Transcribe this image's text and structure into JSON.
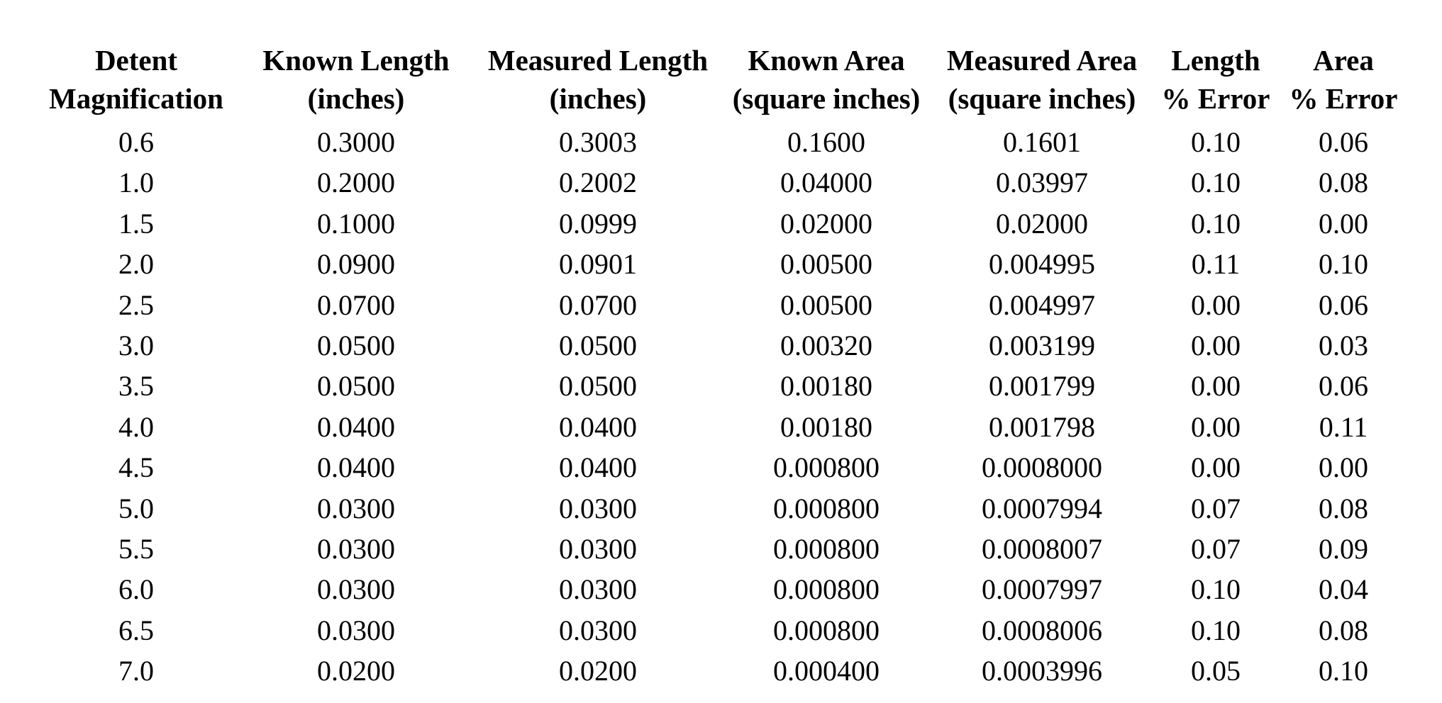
{
  "table": {
    "columns": [
      {
        "line1": "Detent",
        "line2": "Magnification"
      },
      {
        "line1": "Known Length",
        "line2": "(inches)"
      },
      {
        "line1": "Measured Length",
        "line2": "(inches)"
      },
      {
        "line1": "Known Area",
        "line2": "(square inches)"
      },
      {
        "line1": "Measured Area",
        "line2": "(square inches)"
      },
      {
        "line1": "Length",
        "line2": "% Error"
      },
      {
        "line1": "Area",
        "line2": "% Error"
      }
    ],
    "rows": [
      [
        "0.6",
        "0.3000",
        "0.3003",
        "0.1600",
        "0.1601",
        "0.10",
        "0.06"
      ],
      [
        "1.0",
        "0.2000",
        "0.2002",
        "0.04000",
        "0.03997",
        "0.10",
        "0.08"
      ],
      [
        "1.5",
        "0.1000",
        "0.0999",
        "0.02000",
        "0.02000",
        "0.10",
        "0.00"
      ],
      [
        "2.0",
        "0.0900",
        "0.0901",
        "0.00500",
        "0.004995",
        "0.11",
        "0.10"
      ],
      [
        "2.5",
        "0.0700",
        "0.0700",
        "0.00500",
        "0.004997",
        "0.00",
        "0.06"
      ],
      [
        "3.0",
        "0.0500",
        "0.0500",
        "0.00320",
        "0.003199",
        "0.00",
        "0.03"
      ],
      [
        "3.5",
        "0.0500",
        "0.0500",
        "0.00180",
        "0.001799",
        "0.00",
        "0.06"
      ],
      [
        "4.0",
        "0.0400",
        "0.0400",
        "0.00180",
        "0.001798",
        "0.00",
        "0.11"
      ],
      [
        "4.5",
        "0.0400",
        "0.0400",
        "0.000800",
        "0.0008000",
        "0.00",
        "0.00"
      ],
      [
        "5.0",
        "0.0300",
        "0.0300",
        "0.000800",
        "0.0007994",
        "0.07",
        "0.08"
      ],
      [
        "5.5",
        "0.0300",
        "0.0300",
        "0.000800",
        "0.0008007",
        "0.07",
        "0.09"
      ],
      [
        "6.0",
        "0.0300",
        "0.0300",
        "0.000800",
        "0.0007997",
        "0.10",
        "0.04"
      ],
      [
        "6.5",
        "0.0300",
        "0.0300",
        "0.000800",
        "0.0008006",
        "0.10",
        "0.08"
      ],
      [
        "7.0",
        "0.0200",
        "0.0200",
        "0.000400",
        "0.0003996",
        "0.05",
        "0.10"
      ]
    ]
  }
}
